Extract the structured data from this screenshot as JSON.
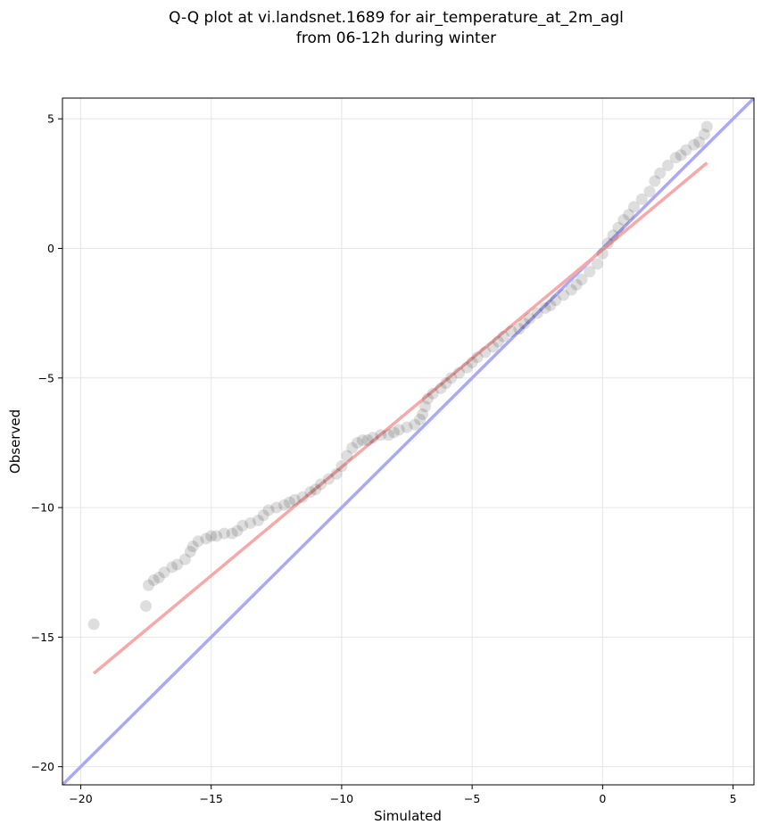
{
  "chart_data": {
    "type": "scatter",
    "title_lines": [
      "Q-Q plot at vi.landsnet.1689 for air_temperature_at_2m_agl",
      "from 06-12h during winter"
    ],
    "xlabel": "Simulated",
    "ylabel": "Observed",
    "xlim": [
      -20.7,
      5.8
    ],
    "ylim": [
      -20.7,
      5.8
    ],
    "x_ticks": [
      -20,
      -15,
      -10,
      -5,
      0,
      5
    ],
    "y_ticks": [
      -20,
      -15,
      -10,
      -5,
      0,
      5
    ],
    "x_tick_labels": [
      "−20",
      "−15",
      "−10",
      "−5",
      "0",
      "5"
    ],
    "y_tick_labels": [
      "−20",
      "−15",
      "−10",
      "−5",
      "0",
      "5"
    ],
    "grid": true,
    "reference_lines": [
      {
        "kind": "identity",
        "color": "#a9a9f5",
        "x": [
          -20.7,
          5.8
        ],
        "y": [
          -20.7,
          5.8
        ]
      },
      {
        "kind": "fit",
        "color": "#f5a9a9",
        "x": [
          -19.5,
          4.0
        ],
        "y": [
          -16.4,
          3.3
        ]
      }
    ],
    "quantile_points": {
      "color": "#000000",
      "x": [
        -19.5,
        -17.5,
        -17.4,
        -17.2,
        -17.0,
        -16.8,
        -16.5,
        -16.3,
        -16.0,
        -15.8,
        -15.7,
        -15.5,
        -15.2,
        -15.0,
        -14.8,
        -14.5,
        -14.2,
        -14.0,
        -13.8,
        -13.5,
        -13.2,
        -13.0,
        -12.8,
        -12.5,
        -12.2,
        -12.0,
        -11.8,
        -11.5,
        -11.2,
        -11.0,
        -10.8,
        -10.5,
        -10.2,
        -10.0,
        -9.8,
        -9.6,
        -9.4,
        -9.2,
        -9.0,
        -8.8,
        -8.5,
        -8.2,
        -8.0,
        -7.8,
        -7.5,
        -7.2,
        -7.0,
        -6.9,
        -6.8,
        -6.7,
        -6.5,
        -6.2,
        -6.0,
        -5.8,
        -5.5,
        -5.2,
        -5.0,
        -4.8,
        -4.5,
        -4.2,
        -4.0,
        -3.8,
        -3.5,
        -3.2,
        -3.0,
        -2.8,
        -2.5,
        -2.2,
        -2.0,
        -1.8,
        -1.5,
        -1.2,
        -1.0,
        -0.8,
        -0.5,
        -0.2,
        0.0,
        0.2,
        0.4,
        0.6,
        0.8,
        1.0,
        1.2,
        1.5,
        1.8,
        2.0,
        2.2,
        2.5,
        2.8,
        3.0,
        3.2,
        3.5,
        3.7,
        3.9,
        4.0
      ],
      "y": [
        -14.5,
        -13.8,
        -13.0,
        -12.8,
        -12.7,
        -12.5,
        -12.3,
        -12.2,
        -12.0,
        -11.7,
        -11.5,
        -11.3,
        -11.2,
        -11.1,
        -11.1,
        -11.0,
        -11.0,
        -10.9,
        -10.7,
        -10.6,
        -10.5,
        -10.3,
        -10.1,
        -10.0,
        -9.9,
        -9.8,
        -9.7,
        -9.6,
        -9.4,
        -9.3,
        -9.1,
        -8.9,
        -8.7,
        -8.4,
        -8.0,
        -7.7,
        -7.5,
        -7.4,
        -7.4,
        -7.3,
        -7.2,
        -7.2,
        -7.1,
        -7.0,
        -6.9,
        -6.8,
        -6.6,
        -6.4,
        -6.1,
        -5.8,
        -5.6,
        -5.4,
        -5.2,
        -5.0,
        -4.8,
        -4.6,
        -4.4,
        -4.2,
        -4.0,
        -3.8,
        -3.6,
        -3.4,
        -3.2,
        -3.1,
        -2.9,
        -2.7,
        -2.5,
        -2.3,
        -2.2,
        -2.0,
        -1.8,
        -1.6,
        -1.4,
        -1.2,
        -0.9,
        -0.6,
        -0.2,
        0.2,
        0.5,
        0.8,
        1.1,
        1.3,
        1.6,
        1.9,
        2.2,
        2.6,
        2.9,
        3.2,
        3.5,
        3.6,
        3.8,
        4.0,
        4.1,
        4.4,
        4.7
      ]
    }
  }
}
